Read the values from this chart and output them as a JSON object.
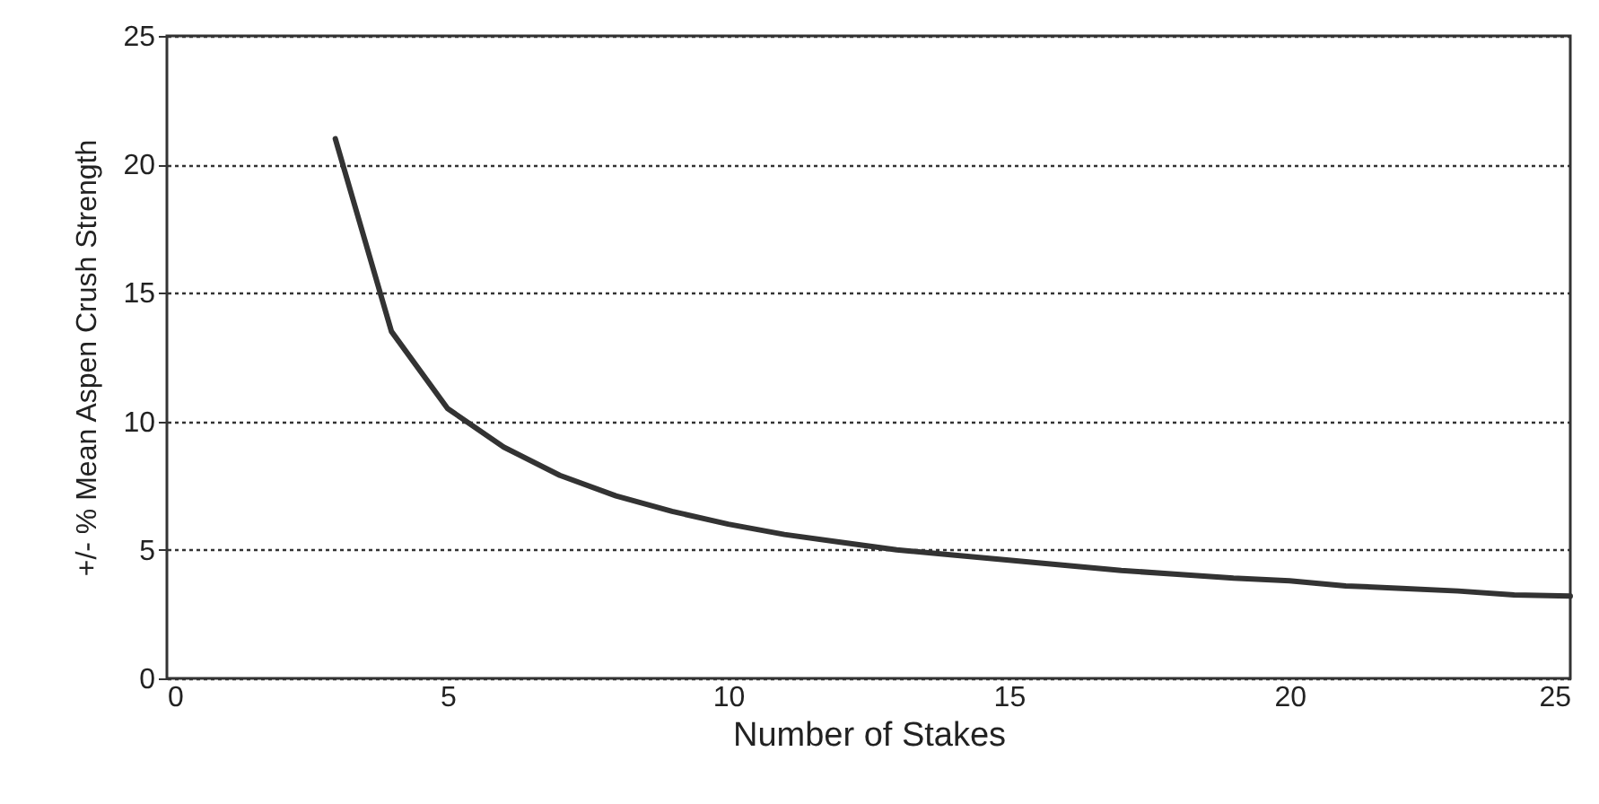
{
  "chart_data": {
    "type": "line",
    "xlabel": "Number of Stakes",
    "ylabel": "+/- % Mean Aspen Crush Strength",
    "x": [
      3,
      4,
      5,
      6,
      7,
      8,
      9,
      10,
      11,
      12,
      13,
      14,
      15,
      16,
      17,
      18,
      19,
      20,
      21,
      22,
      23,
      24,
      25
    ],
    "series": [
      {
        "color": "#333333",
        "values": [
          21,
          13.5,
          10.5,
          9,
          7.9,
          7.1,
          6.5,
          6.0,
          5.6,
          5.3,
          5.0,
          4.8,
          4.6,
          4.4,
          4.2,
          4.05,
          3.9,
          3.8,
          3.6,
          3.5,
          3.4,
          3.25,
          3.2
        ]
      }
    ],
    "xlim": [
      0,
      25
    ],
    "xticks": [
      0,
      5,
      10,
      15,
      20,
      25
    ],
    "ylim": [
      0,
      25
    ],
    "yticks": [
      0,
      5,
      10,
      15,
      20,
      25
    ],
    "grid": "y",
    "marker": "none",
    "line_style": "solid"
  }
}
